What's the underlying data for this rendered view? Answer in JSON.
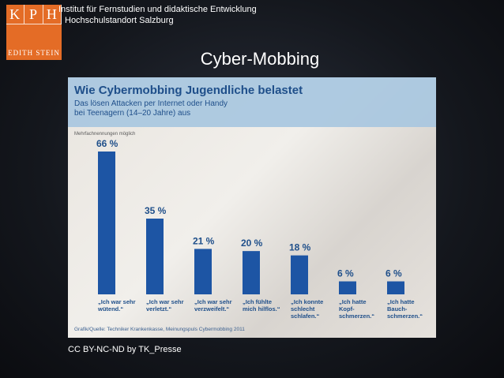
{
  "header": {
    "logo_letters": [
      "K",
      "P",
      "H"
    ],
    "logo_sub": "EDITH STEIN",
    "institute_line1": "Institut für Fernstudien und didaktische Entwicklung",
    "institute_line2": "Hochschulstandort Salzburg"
  },
  "slide": {
    "title": "Cyber-Mobbing",
    "credit": "CC BY-NC-ND by TK_Presse"
  },
  "colors": {
    "bar": "#1d55a4",
    "label": "#1f4f8a",
    "header_band": "#a8c7df",
    "logo": "#e46c26"
  },
  "chart_data": {
    "type": "bar",
    "title": "Wie Cybermobbing Jugendliche belastet",
    "subtitle_line1": "Das lösen Attacken per Internet oder Handy",
    "subtitle_line2": "bei Teenagern (14–20 Jahre) aus",
    "note": "Mehrfachnennungen möglich",
    "source": "Grafik/Quelle: Techniker Krankenkasse, Meinungspuls Cybermobbing 2011",
    "ylim": [
      0,
      66
    ],
    "grid": false,
    "categories": [
      [
        "„Ich war sehr",
        "wütend.“"
      ],
      [
        "„Ich war sehr",
        "verletzt.“"
      ],
      [
        "„Ich war sehr",
        "verzweifelt.“"
      ],
      [
        "„Ich fühlte",
        "mich hilflos.“"
      ],
      [
        "„Ich konnte",
        "schlecht",
        "schlafen.“"
      ],
      [
        "„Ich hatte",
        "Kopf-",
        "schmerzen.“"
      ],
      [
        "„Ich hatte",
        "Bauch-",
        "schmerzen.“"
      ]
    ],
    "values": [
      66,
      35,
      21,
      20,
      18,
      6,
      6
    ],
    "value_labels": [
      "66 %",
      "35 %",
      "21 %",
      "20 %",
      "18 %",
      "6 %",
      "6 %"
    ]
  }
}
